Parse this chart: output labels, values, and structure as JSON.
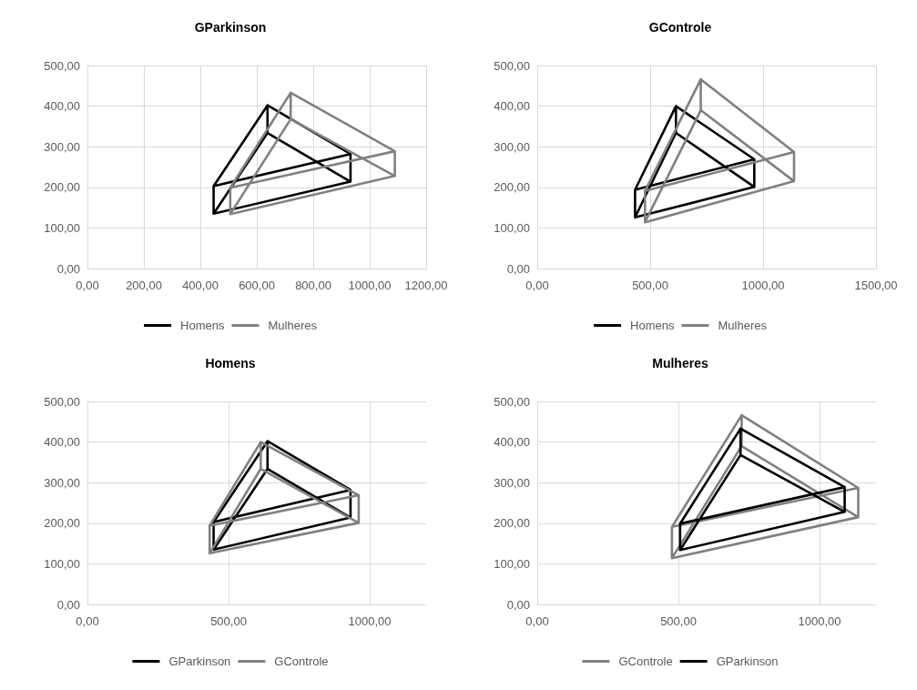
{
  "chart_data": [
    {
      "type": "line",
      "title": "GParkinson",
      "legend": "bottom",
      "grid": true,
      "marker": "none",
      "xlim": [
        0,
        1200
      ],
      "xticks": [
        {
          "value": 0,
          "label": "0,00"
        },
        {
          "value": 200,
          "label": "200,00"
        },
        {
          "value": 400,
          "label": "400,00"
        },
        {
          "value": 600,
          "label": "600,00"
        },
        {
          "value": 800,
          "label": "800,00"
        },
        {
          "value": 1000,
          "label": "1000,00"
        },
        {
          "value": 1200,
          "label": "1200,00"
        }
      ],
      "ylim": [
        0,
        500
      ],
      "yticks": [
        {
          "value": 0,
          "label": "0,00"
        },
        {
          "value": 100,
          "label": "100,00"
        },
        {
          "value": 200,
          "label": "200,00"
        },
        {
          "value": 300,
          "label": "300,00"
        },
        {
          "value": 400,
          "label": "400,00"
        },
        {
          "value": 500,
          "label": "500,00"
        }
      ],
      "series": [
        {
          "name": "Homens",
          "color": "#000000",
          "x": [
            447,
            638,
            932,
            447,
            447,
            932,
            932,
            932,
            638,
            638,
            638,
            447
          ],
          "values": [
            203,
            402,
            282,
            203,
            135,
            214,
            282,
            214,
            334,
            402,
            334,
            135
          ]
        },
        {
          "name": "Mulheres",
          "color": "#808080",
          "x": [
            506,
            720,
            1089,
            506,
            506,
            1089,
            1089,
            1089,
            720,
            720,
            720,
            506
          ],
          "values": [
            199,
            433,
            289,
            199,
            134,
            228,
            289,
            228,
            368,
            433,
            368,
            134
          ]
        }
      ]
    },
    {
      "type": "line",
      "title": "GControle",
      "legend": "bottom",
      "grid": true,
      "marker": "none",
      "xlim": [
        0,
        1500
      ],
      "xticks": [
        {
          "value": 0,
          "label": "0,00"
        },
        {
          "value": 500,
          "label": "500,00"
        },
        {
          "value": 1000,
          "label": "1000,00"
        },
        {
          "value": 1500,
          "label": "1500,00"
        }
      ],
      "ylim": [
        0,
        500
      ],
      "yticks": [
        {
          "value": 0,
          "label": "0,00"
        },
        {
          "value": 100,
          "label": "100,00"
        },
        {
          "value": 200,
          "label": "200,00"
        },
        {
          "value": 300,
          "label": "300,00"
        },
        {
          "value": 400,
          "label": "400,00"
        },
        {
          "value": 500,
          "label": "500,00"
        }
      ],
      "series": [
        {
          "name": "Homens",
          "color": "#000000",
          "x": [
            433,
            614,
            961,
            433,
            433,
            961,
            961,
            961,
            614,
            614,
            614,
            433
          ],
          "values": [
            194,
            400,
            269,
            194,
            126,
            201,
            269,
            201,
            334,
            400,
            334,
            126
          ]
        },
        {
          "name": "Mulheres",
          "color": "#808080",
          "x": [
            477,
            724,
            1137,
            477,
            477,
            1137,
            1137,
            1137,
            724,
            724,
            724,
            477
          ],
          "values": [
            191,
            466,
            287,
            191,
            114,
            215,
            287,
            215,
            390,
            466,
            390,
            114
          ]
        }
      ]
    },
    {
      "type": "line",
      "title": "Homens",
      "legend": "bottom",
      "grid": true,
      "marker": "none",
      "xlim": [
        0,
        1200
      ],
      "xticks": [
        {
          "value": 0,
          "label": "0,00"
        },
        {
          "value": 500,
          "label": "500,00"
        },
        {
          "value": 1000,
          "label": "1000,00"
        }
      ],
      "ylim": [
        0,
        500
      ],
      "yticks": [
        {
          "value": 0,
          "label": "0,00"
        },
        {
          "value": 100,
          "label": "100,00"
        },
        {
          "value": 200,
          "label": "200,00"
        },
        {
          "value": 300,
          "label": "300,00"
        },
        {
          "value": 400,
          "label": "400,00"
        },
        {
          "value": 500,
          "label": "500,00"
        }
      ],
      "series": [
        {
          "name": "GParkinson",
          "color": "#000000",
          "x": [
            447,
            638,
            932,
            447,
            447,
            932,
            932,
            932,
            638,
            638,
            638,
            447
          ],
          "values": [
            203,
            402,
            282,
            203,
            135,
            214,
            282,
            214,
            334,
            402,
            334,
            135
          ]
        },
        {
          "name": "GControle",
          "color": "#808080",
          "x": [
            433,
            614,
            961,
            433,
            433,
            961,
            961,
            961,
            614,
            614,
            614,
            433
          ],
          "values": [
            194,
            400,
            269,
            194,
            126,
            201,
            269,
            201,
            334,
            400,
            334,
            126
          ]
        }
      ]
    },
    {
      "type": "line",
      "title": "Mulheres",
      "legend": "bottom",
      "grid": true,
      "marker": "none",
      "xlim": [
        0,
        1200
      ],
      "xticks": [
        {
          "value": 0,
          "label": "0,00"
        },
        {
          "value": 500,
          "label": "500,00"
        },
        {
          "value": 1000,
          "label": "1000,00"
        }
      ],
      "ylim": [
        0,
        500
      ],
      "yticks": [
        {
          "value": 0,
          "label": "0,00"
        },
        {
          "value": 100,
          "label": "100,00"
        },
        {
          "value": 200,
          "label": "200,00"
        },
        {
          "value": 300,
          "label": "300,00"
        },
        {
          "value": 400,
          "label": "400,00"
        },
        {
          "value": 500,
          "label": "500,00"
        }
      ],
      "series": [
        {
          "name": "GControle",
          "color": "#808080",
          "x": [
            477,
            724,
            1137,
            477,
            477,
            1137,
            1137,
            1137,
            724,
            724,
            724,
            477
          ],
          "values": [
            191,
            466,
            287,
            191,
            114,
            215,
            287,
            215,
            390,
            466,
            390,
            114
          ]
        },
        {
          "name": "GParkinson",
          "color": "#000000",
          "x": [
            506,
            720,
            1089,
            506,
            506,
            1089,
            1089,
            1089,
            720,
            720,
            720,
            506
          ],
          "values": [
            199,
            433,
            289,
            199,
            134,
            228,
            289,
            228,
            368,
            433,
            368,
            134
          ]
        }
      ]
    }
  ]
}
